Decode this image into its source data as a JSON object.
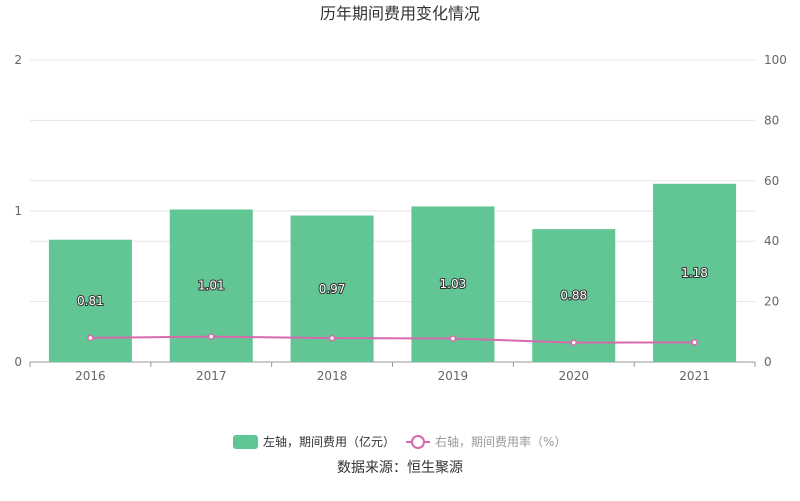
{
  "chart_data": {
    "type": "bar",
    "title": "历年期间费用变化情况",
    "categories": [
      "2016",
      "2017",
      "2018",
      "2019",
      "2020",
      "2021"
    ],
    "series": [
      {
        "name": "左轴，期间费用（亿元）",
        "type": "bar",
        "axis": "left",
        "values": [
          0.81,
          1.01,
          0.97,
          1.03,
          0.88,
          1.18
        ],
        "data_labels": [
          "0.81",
          "1.01",
          "0.97",
          "1.03",
          "0.88",
          "1.18"
        ],
        "color": "#62c594"
      },
      {
        "name": "右轴，期间费用率（%）",
        "type": "line",
        "axis": "right",
        "values": [
          8.0,
          8.4,
          7.9,
          7.8,
          6.4,
          6.5
        ],
        "color": "#d56bac"
      }
    ],
    "y_left": {
      "min": 0,
      "max": 2,
      "ticks": [
        "0",
        "1",
        "2"
      ]
    },
    "y_right": {
      "min": 0,
      "max": 100,
      "ticks": [
        "0",
        "20",
        "40",
        "60",
        "80",
        "100"
      ]
    },
    "grid": true,
    "legend_position": "bottom"
  },
  "source_text": "数据来源：恒生聚源"
}
